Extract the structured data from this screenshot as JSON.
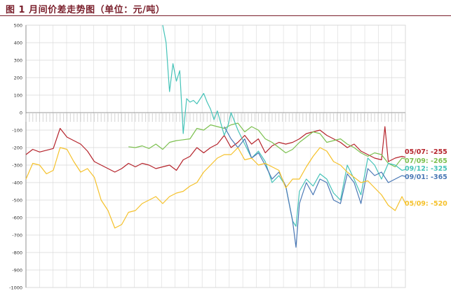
{
  "figure": {
    "title": "图 1 月间价差走势图（单位：元/吨）"
  },
  "colors": {
    "title": "#7a1f2b",
    "grid": "#d9d9d9",
    "axis": "#7f7f7f",
    "zero_band": "#bfbfbf"
  },
  "chart_data": {
    "type": "line",
    "title": "图 1 月间价差走势图（单位：元/吨）",
    "xlabel": "",
    "ylabel": "",
    "ylim": [
      -1000,
      500
    ],
    "yticks": [
      500,
      400,
      300,
      200,
      100,
      0,
      -100,
      -200,
      -300,
      -400,
      -500,
      -600,
      -700,
      -800,
      -900,
      -1000
    ],
    "grid": true,
    "legend": "right (end-of-line labels)",
    "x_count": 112,
    "series": [
      {
        "name": "05/07: -255",
        "color": "#b5232b",
        "x": [
          0,
          2,
          4,
          6,
          8,
          10,
          12,
          14,
          16,
          18,
          20,
          22,
          24,
          26,
          28,
          30,
          32,
          34,
          36,
          38,
          40,
          42,
          44,
          46,
          48,
          50,
          52,
          54,
          56,
          58,
          60,
          62,
          64,
          66,
          68,
          70,
          72,
          74,
          76,
          78,
          80,
          82,
          84,
          86,
          88,
          90,
          92,
          94,
          96,
          98,
          100,
          102,
          104,
          105,
          106,
          108,
          110,
          111
        ],
        "y": [
          -240,
          -210,
          -225,
          -215,
          -205,
          -90,
          -140,
          -160,
          -180,
          -220,
          -280,
          -300,
          -320,
          -340,
          -320,
          -290,
          -310,
          -290,
          -300,
          -320,
          -310,
          -300,
          -330,
          -270,
          -250,
          -200,
          -230,
          -200,
          -180,
          -130,
          -200,
          -170,
          -130,
          -180,
          -150,
          -230,
          -190,
          -170,
          -180,
          -170,
          -150,
          -120,
          -110,
          -100,
          -130,
          -150,
          -170,
          -200,
          -180,
          -220,
          -240,
          -260,
          -270,
          -80,
          -280,
          -260,
          -250,
          -255
        ]
      },
      {
        "name": "07/09: -265",
        "color": "#7cc04f",
        "x": [
          30,
          32,
          34,
          36,
          38,
          40,
          42,
          44,
          46,
          48,
          50,
          52,
          54,
          56,
          58,
          60,
          62,
          64,
          66,
          68,
          70,
          72,
          74,
          76,
          78,
          80,
          82,
          84,
          86,
          88,
          90,
          92,
          94,
          96,
          98,
          100,
          102,
          104,
          106,
          108,
          110,
          111
        ],
        "y": [
          -195,
          -200,
          -190,
          -205,
          -180,
          -210,
          -170,
          -160,
          -155,
          -150,
          -90,
          -100,
          -70,
          -80,
          -90,
          -70,
          -60,
          -110,
          -80,
          -100,
          -150,
          -170,
          -200,
          -230,
          -210,
          -170,
          -140,
          -110,
          -120,
          -170,
          -160,
          -150,
          -180,
          -200,
          -230,
          -250,
          -230,
          -240,
          -290,
          -310,
          -260,
          -265
        ]
      },
      {
        "name": "09/12: -325",
        "color": "#45c3b8",
        "x": [
          40,
          41,
          42,
          43,
          44,
          45,
          46,
          47,
          48,
          49,
          50,
          51,
          52,
          53,
          54,
          55,
          56,
          57,
          58,
          59,
          60,
          62,
          64,
          66,
          68,
          70,
          72,
          74,
          76,
          78,
          79,
          80,
          82,
          84,
          86,
          88,
          90,
          92,
          94,
          96,
          98,
          100,
          102,
          104,
          106,
          108,
          110,
          111
        ],
        "y": [
          500,
          400,
          120,
          280,
          180,
          240,
          -120,
          80,
          60,
          70,
          50,
          80,
          110,
          60,
          20,
          -40,
          10,
          -60,
          -130,
          -80,
          0,
          -100,
          -180,
          -260,
          -220,
          -280,
          -400,
          -360,
          -420,
          -620,
          -650,
          -450,
          -380,
          -420,
          -350,
          -380,
          -460,
          -500,
          -300,
          -380,
          -470,
          -260,
          -300,
          -380,
          -290,
          -300,
          -330,
          -325
        ]
      },
      {
        "name": "09/01: -365",
        "color": "#4a78b5",
        "x": [
          58,
          60,
          62,
          64,
          66,
          68,
          70,
          72,
          74,
          76,
          78,
          79,
          80,
          82,
          84,
          86,
          88,
          90,
          92,
          94,
          96,
          98,
          100,
          102,
          104,
          106,
          108,
          110,
          111
        ],
        "y": [
          -80,
          -150,
          -200,
          -150,
          -260,
          -230,
          -300,
          -380,
          -340,
          -420,
          -620,
          -770,
          -520,
          -400,
          -470,
          -380,
          -400,
          -500,
          -520,
          -350,
          -400,
          -520,
          -320,
          -360,
          -340,
          -400,
          -380,
          -360,
          -365
        ]
      },
      {
        "name": "05/09: -520",
        "color": "#f5c12a",
        "x": [
          0,
          2,
          4,
          6,
          8,
          10,
          12,
          14,
          16,
          18,
          20,
          22,
          24,
          26,
          28,
          30,
          32,
          34,
          36,
          38,
          40,
          42,
          44,
          46,
          48,
          50,
          52,
          54,
          56,
          58,
          60,
          62,
          64,
          66,
          68,
          70,
          72,
          74,
          76,
          78,
          80,
          82,
          84,
          86,
          88,
          90,
          92,
          94,
          96,
          98,
          100,
          102,
          104,
          106,
          108,
          110,
          111
        ],
        "y": [
          -380,
          -290,
          -300,
          -350,
          -330,
          -200,
          -210,
          -280,
          -340,
          -320,
          -370,
          -500,
          -560,
          -660,
          -640,
          -570,
          -560,
          -520,
          -500,
          -480,
          -520,
          -480,
          -460,
          -450,
          -420,
          -400,
          -340,
          -300,
          -260,
          -240,
          -240,
          -200,
          -270,
          -260,
          -300,
          -290,
          -310,
          -330,
          -430,
          -380,
          -380,
          -310,
          -250,
          -200,
          -220,
          -280,
          -300,
          -340,
          -370,
          -400,
          -390,
          -430,
          -470,
          -530,
          -560,
          -480,
          -520
        ]
      }
    ]
  }
}
